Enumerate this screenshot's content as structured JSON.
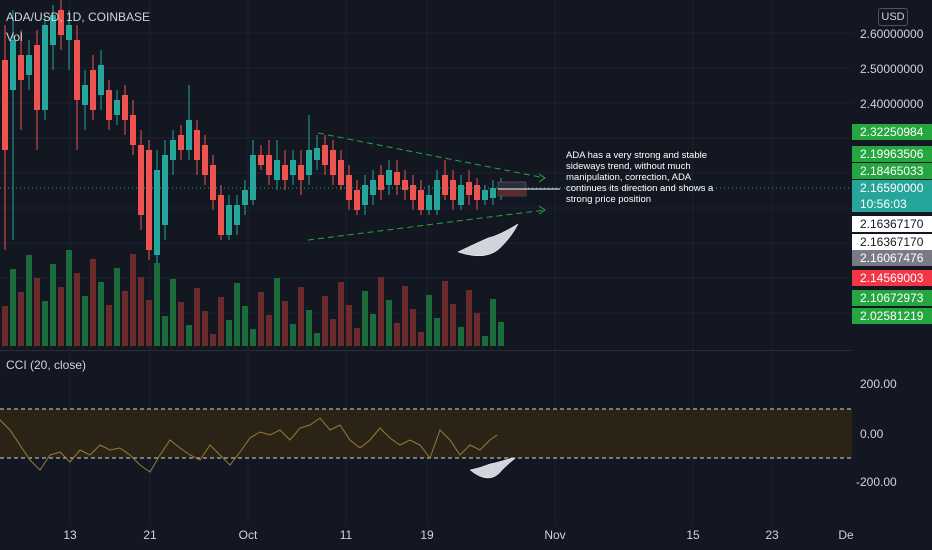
{
  "header": {
    "symbol_line": "ADA/USD, 1D, COINBASE",
    "volume_label": "Vol",
    "currency_badge": "USD"
  },
  "annotation": {
    "text": "ADA has a very strong and stable sideways trend, without much manipulation, correction, ADA continues its direction and shows a strong price position"
  },
  "price_axis": {
    "labels": [
      "2.60000000",
      "2.50000000",
      "2.40000000"
    ],
    "tags": [
      {
        "text": "2.32250984",
        "color": "#26a641",
        "text_color": "#ffffff"
      },
      {
        "text": "2.19963506",
        "color": "#26a641",
        "text_color": "#ffffff"
      },
      {
        "text": "2.18465033",
        "color": "#26a641",
        "text_color": "#ffffff"
      },
      {
        "text": "2.16590000",
        "color": "#26a69a",
        "text_color": "#ffffff"
      },
      {
        "text": "10:56:03",
        "color": "#26a69a",
        "text_color": "#ffffff"
      },
      {
        "text": "2.16367170",
        "color": "#ffffff",
        "text_color": "#131722"
      },
      {
        "text": "2.16367170",
        "color": "#ffffff",
        "text_color": "#131722"
      },
      {
        "text": "2.16067476",
        "color": "#787b86",
        "text_color": "#ffffff"
      },
      {
        "text": "2.14569003",
        "color": "#f23645",
        "text_color": "#ffffff"
      },
      {
        "text": "2.10672973",
        "color": "#26a641",
        "text_color": "#ffffff"
      },
      {
        "text": "2.02581219",
        "color": "#26a641",
        "text_color": "#ffffff"
      }
    ]
  },
  "cci": {
    "legend": "CCI (20, close)",
    "axis_labels": [
      "200.00",
      "0.00",
      "-200.00"
    ]
  },
  "time_axis": {
    "labels": [
      "13",
      "21",
      "Oct",
      "11",
      "19",
      "Nov",
      "15",
      "23",
      "De"
    ]
  },
  "colors": {
    "up": "#26a69a",
    "down": "#ef5350",
    "background": "#131722",
    "grid": "#1e222d",
    "trendline": "#26a641"
  }
}
